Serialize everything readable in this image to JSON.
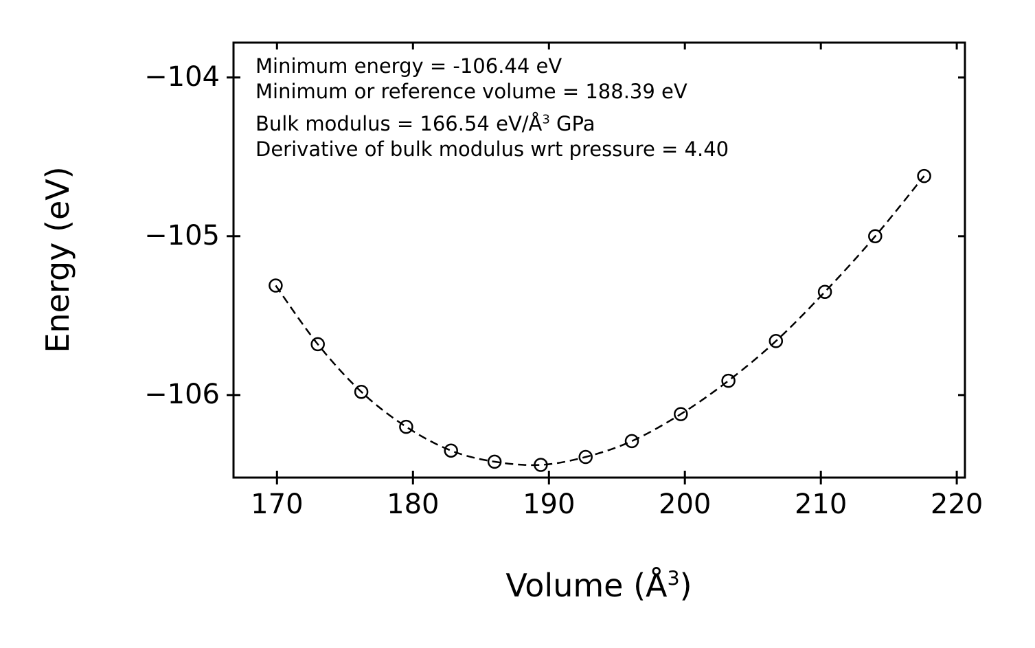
{
  "figure": {
    "background": "#ffffff",
    "foreground": "#000000"
  },
  "chart_data": {
    "type": "scatter",
    "title": "",
    "ylabel": "Energy (eV)",
    "xlabel_parts": {
      "prefix": "Volume (Å",
      "sup": "3",
      "suffix": ")"
    },
    "x": [
      169.9,
      173.0,
      176.2,
      179.5,
      182.8,
      186.0,
      189.4,
      192.7,
      196.1,
      199.7,
      203.2,
      206.7,
      210.3,
      214.0,
      217.6
    ],
    "y": [
      -105.31,
      -105.68,
      -105.98,
      -106.2,
      -106.35,
      -106.42,
      -106.44,
      -106.39,
      -106.29,
      -106.12,
      -105.91,
      -105.66,
      -105.35,
      -105.0,
      -104.62
    ],
    "xlim": [
      166.8,
      220.6
    ],
    "ylim": [
      -106.52,
      -103.78
    ],
    "x_ticks": [
      170,
      180,
      190,
      200,
      210,
      220
    ],
    "x_tick_labels": [
      "170",
      "180",
      "190",
      "200",
      "210",
      "220"
    ],
    "y_ticks": [
      -104,
      -105,
      -106
    ],
    "y_tick_labels": [
      "−104",
      "−105",
      "−106"
    ],
    "grid": false,
    "legend": "none",
    "line_style": "dashed",
    "marker": "open-circle",
    "color": "#000000",
    "annotations": {
      "line1": "Minimum energy = -106.44 eV",
      "line2": "Minimum or reference volume = 188.39 eV",
      "line3_parts": {
        "prefix": "Bulk modulus = 166.54 eV/Å",
        "sup": "3",
        "suffix": " GPa"
      },
      "line4": "Derivative of bulk modulus wrt pressure = 4.40"
    }
  }
}
